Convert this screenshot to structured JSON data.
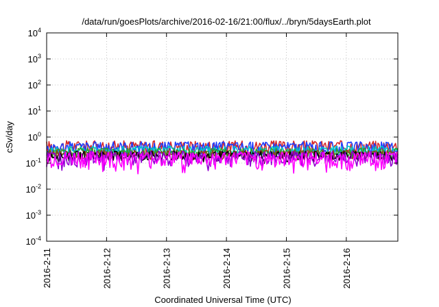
{
  "chart_data": {
    "type": "line",
    "title": "/data/run/goesPlots/archive/2016-02-16/21:00/flux/../bryn/5daysEarth.plot",
    "xlabel": "Coordinated Universal Time (UTC)",
    "ylabel": "cSv/day",
    "yscale": "log",
    "ylim": [
      0.0001,
      10000
    ],
    "xlim": [
      0,
      5.86
    ],
    "grid": true,
    "x_ticks": [
      {
        "x": 0,
        "label": "2016-2-11"
      },
      {
        "x": 1,
        "label": "2016-2-12"
      },
      {
        "x": 2,
        "label": "2016-2-13"
      },
      {
        "x": 3,
        "label": "2016-2-14"
      },
      {
        "x": 4,
        "label": "2016-2-15"
      },
      {
        "x": 5,
        "label": "2016-2-16"
      }
    ],
    "y_ticks": [
      {
        "value": 0.0001,
        "base": "10",
        "exp": "-4"
      },
      {
        "value": 0.001,
        "base": "10",
        "exp": "-3"
      },
      {
        "value": 0.01,
        "base": "10",
        "exp": "-2"
      },
      {
        "value": 0.1,
        "base": "10",
        "exp": "-1"
      },
      {
        "value": 1,
        "base": "10",
        "exp": "0"
      },
      {
        "value": 10,
        "base": "10",
        "exp": "1"
      },
      {
        "value": 100,
        "base": "10",
        "exp": "2"
      },
      {
        "value": 1000,
        "base": "10",
        "exp": "3"
      },
      {
        "value": 10000,
        "base": "10",
        "exp": "4"
      }
    ],
    "series": [
      {
        "color": "#d62728",
        "level": 0.46,
        "spread": 0.12,
        "dips": false
      },
      {
        "color": "#1f3fff",
        "level": 0.42,
        "spread": 0.11,
        "dips": false
      },
      {
        "color": "#00c8c8",
        "level": 0.32,
        "spread": 0.06,
        "dips": false
      },
      {
        "color": "#2ca02c",
        "level": 0.27,
        "spread": 0.05,
        "dips": false
      },
      {
        "color": "#8b4513",
        "level": 0.22,
        "spread": 0.04,
        "dips": false
      },
      {
        "color": "#000000",
        "level": 0.2,
        "spread": 0.04,
        "dips": false
      },
      {
        "color": "#9400d3",
        "level": 0.18,
        "spread": 0.05,
        "dips": true
      },
      {
        "color": "#ff00ff",
        "level": 0.16,
        "spread": 0.05,
        "dips": true
      }
    ]
  }
}
